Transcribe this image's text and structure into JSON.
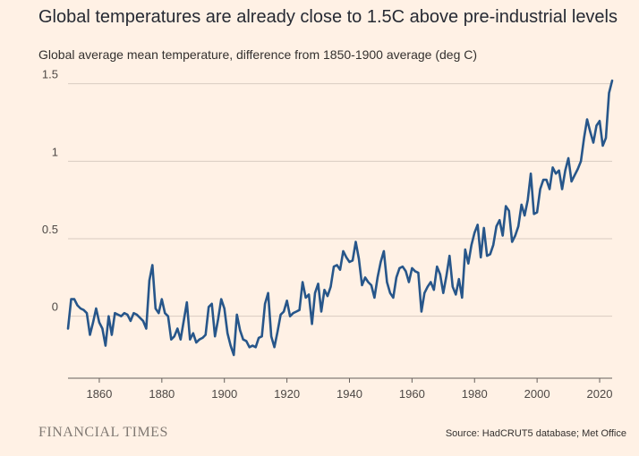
{
  "title": "Global temperatures are already close to 1.5C above pre-industrial levels",
  "subtitle": "Global average mean temperature, difference from 1850-1900 average (deg C)",
  "brand": "FINANCIAL TIMES",
  "source": "Source: HadCRUT5 database; Met Office",
  "colors": {
    "line": "#27568a",
    "background": "#fff1e5",
    "grid": "#d9ccc1",
    "axis": "#66605c"
  },
  "chart_data": {
    "type": "line",
    "title": "Global temperatures are already close to 1.5C above pre-industrial levels",
    "xlabel": "",
    "ylabel": "Global average mean temperature, difference from 1850-1900 average (deg C)",
    "xlim": [
      1850,
      2024
    ],
    "ylim": [
      -0.4,
      1.55
    ],
    "grid": true,
    "xticks": [
      1860,
      1880,
      1900,
      1920,
      1940,
      1960,
      1980,
      2000,
      2020
    ],
    "yticks": [
      0,
      0.5,
      1,
      1.5
    ],
    "ytick_labels": [
      "0",
      "0.5",
      "1",
      "1.5"
    ],
    "series": [
      {
        "x": [
          1850,
          1851,
          1852,
          1853,
          1854,
          1855,
          1856,
          1857,
          1858,
          1859,
          1860,
          1861,
          1862,
          1863,
          1864,
          1865,
          1866,
          1867,
          1868,
          1869,
          1870,
          1871,
          1872,
          1873,
          1874,
          1875,
          1876,
          1877,
          1878,
          1879,
          1880,
          1881,
          1882,
          1883,
          1884,
          1885,
          1886,
          1887,
          1888,
          1889,
          1890,
          1891,
          1892,
          1893,
          1894,
          1895,
          1896,
          1897,
          1898,
          1899,
          1900,
          1901,
          1902,
          1903,
          1904,
          1905,
          1906,
          1907,
          1908,
          1909,
          1910,
          1911,
          1912,
          1913,
          1914,
          1915,
          1916,
          1917,
          1918,
          1919,
          1920,
          1921,
          1922,
          1923,
          1924,
          1925,
          1926,
          1927,
          1928,
          1929,
          1930,
          1931,
          1932,
          1933,
          1934,
          1935,
          1936,
          1937,
          1938,
          1939,
          1940,
          1941,
          1942,
          1943,
          1944,
          1945,
          1946,
          1947,
          1948,
          1949,
          1950,
          1951,
          1952,
          1953,
          1954,
          1955,
          1956,
          1957,
          1958,
          1959,
          1960,
          1961,
          1962,
          1963,
          1964,
          1965,
          1966,
          1967,
          1968,
          1969,
          1970,
          1971,
          1972,
          1973,
          1974,
          1975,
          1976,
          1977,
          1978,
          1979,
          1980,
          1981,
          1982,
          1983,
          1984,
          1985,
          1986,
          1987,
          1988,
          1989,
          1990,
          1991,
          1992,
          1993,
          1994,
          1995,
          1996,
          1997,
          1998,
          1999,
          2000,
          2001,
          2002,
          2003,
          2004,
          2005,
          2006,
          2007,
          2008,
          2009,
          2010,
          2011,
          2012,
          2013,
          2014,
          2015,
          2016,
          2017,
          2018,
          2019,
          2020,
          2021,
          2022,
          2023,
          2024
        ],
        "values": [
          -0.08,
          0.11,
          0.11,
          0.07,
          0.05,
          0.04,
          0.02,
          -0.12,
          -0.04,
          0.05,
          -0.04,
          -0.08,
          -0.19,
          0.0,
          -0.12,
          0.02,
          0.01,
          0.0,
          0.02,
          0.01,
          -0.03,
          0.02,
          0.01,
          -0.01,
          -0.03,
          -0.08,
          0.23,
          0.33,
          0.05,
          0.02,
          0.11,
          0.02,
          0.0,
          -0.15,
          -0.13,
          -0.08,
          -0.15,
          -0.03,
          0.09,
          -0.15,
          -0.11,
          -0.17,
          -0.15,
          -0.14,
          -0.12,
          0.06,
          0.08,
          -0.13,
          -0.02,
          0.11,
          0.05,
          -0.11,
          -0.19,
          -0.25,
          0.01,
          -0.09,
          -0.15,
          -0.16,
          -0.2,
          -0.19,
          -0.2,
          -0.14,
          -0.13,
          0.08,
          0.15,
          -0.13,
          -0.2,
          -0.1,
          0.01,
          0.03,
          0.1,
          0.0,
          0.02,
          0.03,
          0.04,
          0.22,
          0.12,
          0.14,
          -0.05,
          0.15,
          0.21,
          0.03,
          0.17,
          0.13,
          0.19,
          0.32,
          0.33,
          0.3,
          0.42,
          0.38,
          0.35,
          0.36,
          0.48,
          0.37,
          0.2,
          0.25,
          0.22,
          0.2,
          0.12,
          0.25,
          0.35,
          0.42,
          0.22,
          0.15,
          0.12,
          0.25,
          0.31,
          0.32,
          0.29,
          0.22,
          0.31,
          0.29,
          0.28,
          0.03,
          0.15,
          0.19,
          0.22,
          0.17,
          0.32,
          0.27,
          0.15,
          0.26,
          0.39,
          0.19,
          0.14,
          0.24,
          0.12,
          0.43,
          0.34,
          0.46,
          0.54,
          0.59,
          0.38,
          0.57,
          0.39,
          0.4,
          0.46,
          0.58,
          0.62,
          0.52,
          0.71,
          0.68,
          0.48,
          0.52,
          0.58,
          0.72,
          0.65,
          0.75,
          0.92,
          0.66,
          0.67,
          0.82,
          0.88,
          0.88,
          0.82,
          0.96,
          0.92,
          0.94,
          0.82,
          0.94,
          1.02,
          0.87,
          0.91,
          0.95,
          1.0,
          1.15,
          1.27,
          1.19,
          1.12,
          1.23,
          1.26,
          1.1,
          1.15,
          1.44,
          1.52
        ]
      }
    ]
  }
}
